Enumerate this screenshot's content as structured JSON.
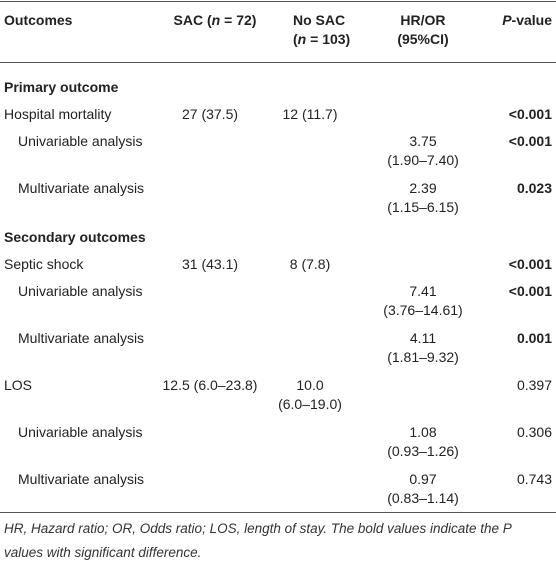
{
  "header": [
    [
      "Outcomes"
    ],
    [
      "SAC (",
      "n",
      " = 72)"
    ],
    [
      "No SAC",
      "(",
      "n",
      " = 103)"
    ],
    [
      "HR/OR",
      "(95%CI)"
    ],
    [
      "P",
      "-value"
    ]
  ],
  "sections": [
    {
      "title": "Primary outcome",
      "rows": [
        {
          "label": "Hospital mortality",
          "level": 0,
          "sac": [
            "27 (37.5)"
          ],
          "no_sac": [
            "12 (11.7)"
          ],
          "hr": [],
          "p": "<0.001",
          "bold": true
        },
        {
          "label": "Univariable analysis",
          "level": 1,
          "sac": [],
          "no_sac": [],
          "hr": [
            "3.75",
            "(1.90–7.40)"
          ],
          "p": "<0.001",
          "bold": true
        },
        {
          "label": "Multivariate analysis",
          "level": 1,
          "sac": [],
          "no_sac": [],
          "hr": [
            "2.39",
            "(1.15–6.15)"
          ],
          "p": "0.023",
          "bold": true
        }
      ]
    },
    {
      "title": "Secondary outcomes",
      "rows": [
        {
          "label": "Septic shock",
          "level": 0,
          "sac": [
            "31 (43.1)"
          ],
          "no_sac": [
            "8 (7.8)"
          ],
          "hr": [],
          "p": "<0.001",
          "bold": true
        },
        {
          "label": "Univariable analysis",
          "level": 1,
          "sac": [],
          "no_sac": [],
          "hr": [
            "7.41",
            "(3.76–14.61)"
          ],
          "p": "<0.001",
          "bold": true
        },
        {
          "label": "Multivariate analysis",
          "level": 1,
          "sac": [],
          "no_sac": [],
          "hr": [
            "4.11",
            "(1.81–9.32)"
          ],
          "p": "0.001",
          "bold": true
        },
        {
          "label": "LOS",
          "level": 0,
          "sac": [
            "12.5 (6.0–23.8)"
          ],
          "no_sac": [
            "10.0",
            "(6.0–19.0)"
          ],
          "hr": [],
          "p": "0.397",
          "bold": false
        },
        {
          "label": "Univariable analysis",
          "level": 1,
          "sac": [],
          "no_sac": [],
          "hr": [
            "1.08",
            "(0.93–1.26)"
          ],
          "p": "0.306",
          "bold": false
        },
        {
          "label": "Multivariate analysis",
          "level": 1,
          "sac": [],
          "no_sac": [],
          "hr": [
            "0.97",
            "(0.83–1.14)"
          ],
          "p": "0.743",
          "bold": false
        }
      ]
    }
  ],
  "footnote": "HR, Hazard ratio; OR, Odds ratio; LOS, length of stay. The bold values indicate the P values with significant difference."
}
